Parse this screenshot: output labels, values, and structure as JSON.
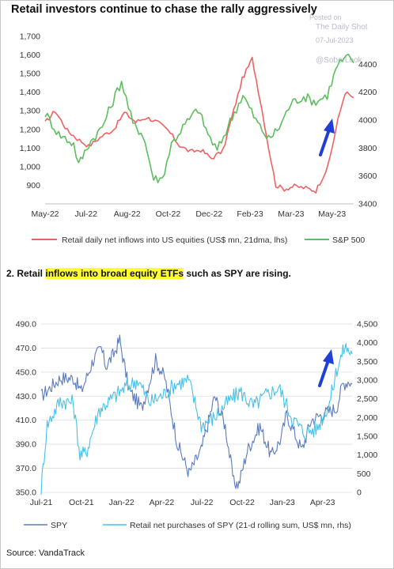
{
  "title_top": "Retail investors continue to chase the rally aggressively",
  "watermark": {
    "line1": "Posted on",
    "line2": "The Daily Shot",
    "line3": "07-Jul-2023",
    "line4": "@SoberLook"
  },
  "title_bottom": {
    "prefix": "2. Retail ",
    "highlight": "inflows into broad equity ETFs",
    "suffix": " such as SPY are rising."
  },
  "source": "Source: VandaTrack",
  "colors": {
    "red": "#f06262",
    "green": "#5dbe5d",
    "spy": "#5b7bbd",
    "retail": "#45c2e8",
    "arrow": "#1f3fd6"
  },
  "chart_data": [
    {
      "type": "line",
      "title": "Retail investors continue to chase the rally aggressively",
      "x_tick_labels": [
        "May-22",
        "Jul-22",
        "Aug-22",
        "Oct-22",
        "Dec-22",
        "Feb-23",
        "Mar-23",
        "May-23"
      ],
      "y_left_ticks": [
        "900",
        "1,000",
        "1,100",
        "1,200",
        "1,300",
        "1,400",
        "1,500",
        "1,600",
        "1,700"
      ],
      "y_left_range": [
        800,
        1700
      ],
      "y_right_ticks": [
        "3400",
        "3600",
        "3800",
        "4000",
        "4200",
        "4400"
      ],
      "y_right_range": [
        3400,
        4600
      ],
      "x_range": [
        "2022-05-01",
        "2023-07-07"
      ],
      "series": [
        {
          "name": "Retail daily net inflows into US equities (US$ mn, 21dma, lhs)",
          "axis": "left",
          "points": [
            [
              "2022-05-01",
              1235
            ],
            [
              "2022-05-15",
              1300
            ],
            [
              "2022-06-01",
              1195
            ],
            [
              "2022-06-15",
              1150
            ],
            [
              "2022-07-01",
              1110
            ],
            [
              "2022-07-20",
              1165
            ],
            [
              "2022-08-05",
              1200
            ],
            [
              "2022-08-20",
              1290
            ],
            [
              "2022-09-05",
              1240
            ],
            [
              "2022-09-20",
              1265
            ],
            [
              "2022-10-05",
              1240
            ],
            [
              "2022-10-20",
              1195
            ],
            [
              "2022-11-05",
              1115
            ],
            [
              "2022-11-20",
              1080
            ],
            [
              "2022-12-05",
              1090
            ],
            [
              "2022-12-20",
              1045
            ],
            [
              "2023-01-05",
              1085
            ],
            [
              "2023-01-20",
              1300
            ],
            [
              "2023-02-01",
              1470
            ],
            [
              "2023-02-15",
              1580
            ],
            [
              "2023-03-01",
              1300
            ],
            [
              "2023-03-10",
              1100
            ],
            [
              "2023-03-20",
              900
            ],
            [
              "2023-04-01",
              880
            ],
            [
              "2023-04-15",
              895
            ],
            [
              "2023-05-01",
              885
            ],
            [
              "2023-05-15",
              870
            ],
            [
              "2023-06-01",
              1000
            ],
            [
              "2023-06-15",
              1250
            ],
            [
              "2023-06-25",
              1400
            ],
            [
              "2023-07-07",
              1370
            ]
          ]
        },
        {
          "name": "S&P 500",
          "axis": "right",
          "points": [
            [
              "2022-05-01",
              4050
            ],
            [
              "2022-05-20",
              3900
            ],
            [
              "2022-06-10",
              3830
            ],
            [
              "2022-06-17",
              3680
            ],
            [
              "2022-07-01",
              3830
            ],
            [
              "2022-07-20",
              3950
            ],
            [
              "2022-08-10",
              4210
            ],
            [
              "2022-08-16",
              4280
            ],
            [
              "2022-09-01",
              3970
            ],
            [
              "2022-09-15",
              3900
            ],
            [
              "2022-09-30",
              3580
            ],
            [
              "2022-10-12",
              3580
            ],
            [
              "2022-10-25",
              3830
            ],
            [
              "2022-11-10",
              3950
            ],
            [
              "2022-12-01",
              4080
            ],
            [
              "2022-12-15",
              3900
            ],
            [
              "2022-12-28",
              3780
            ],
            [
              "2023-01-15",
              3990
            ],
            [
              "2023-02-02",
              4180
            ],
            [
              "2023-02-20",
              4000
            ],
            [
              "2023-03-10",
              3860
            ],
            [
              "2023-03-25",
              3950
            ],
            [
              "2023-04-10",
              4120
            ],
            [
              "2023-04-28",
              4170
            ],
            [
              "2023-05-15",
              4130
            ],
            [
              "2023-05-31",
              4180
            ],
            [
              "2023-06-15",
              4400
            ],
            [
              "2023-06-30",
              4450
            ],
            [
              "2023-07-07",
              4410
            ]
          ]
        }
      ],
      "annotation": "up-arrow"
    },
    {
      "type": "line",
      "x_tick_labels": [
        "Jul-21",
        "Oct-21",
        "Jan-22",
        "Apr-22",
        "Jul-22",
        "Oct-22",
        "Jan-23",
        "Apr-23"
      ],
      "y_left_ticks": [
        "350.0",
        "370.0",
        "390.0",
        "410.0",
        "430.0",
        "450.0",
        "470.0",
        "490.0"
      ],
      "y_left_range": [
        350,
        490
      ],
      "y_right_ticks": [
        "0",
        "500",
        "1,000",
        "1,500",
        "2,000",
        "2,500",
        "3,000",
        "3,500",
        "4,000",
        "4,500"
      ],
      "y_right_range": [
        0,
        4500
      ],
      "x_range": [
        "2021-07-01",
        "2023-07-07"
      ],
      "series": [
        {
          "name": "SPY",
          "axis": "left",
          "points": [
            [
              "2021-07-01",
              430
            ],
            [
              "2021-08-15",
              445
            ],
            [
              "2021-09-15",
              445
            ],
            [
              "2021-10-04",
              434
            ],
            [
              "2021-11-01",
              460
            ],
            [
              "2021-11-20",
              470
            ],
            [
              "2021-12-01",
              455
            ],
            [
              "2021-12-20",
              465
            ],
            [
              "2022-01-03",
              477
            ],
            [
              "2022-01-25",
              435
            ],
            [
              "2022-02-24",
              420
            ],
            [
              "2022-03-29",
              460
            ],
            [
              "2022-04-20",
              445
            ],
            [
              "2022-05-20",
              390
            ],
            [
              "2022-06-16",
              366
            ],
            [
              "2022-07-15",
              385
            ],
            [
              "2022-08-16",
              430
            ],
            [
              "2022-09-10",
              405
            ],
            [
              "2022-09-30",
              358
            ],
            [
              "2022-10-12",
              357
            ],
            [
              "2022-11-01",
              385
            ],
            [
              "2022-12-01",
              405
            ],
            [
              "2022-12-28",
              380
            ],
            [
              "2023-01-20",
              395
            ],
            [
              "2023-02-02",
              415
            ],
            [
              "2023-03-10",
              385
            ],
            [
              "2023-04-01",
              410
            ],
            [
              "2023-04-28",
              415
            ],
            [
              "2023-05-31",
              420
            ],
            [
              "2023-06-15",
              440
            ],
            [
              "2023-06-30",
              443
            ],
            [
              "2023-07-07",
              440
            ]
          ]
        },
        {
          "name": "Retail net purchases of SPY (21-d rolling sum, US$ mn, rhs)",
          "axis": "right",
          "points": [
            [
              "2021-07-01",
              100
            ],
            [
              "2021-07-15",
              1800
            ],
            [
              "2021-08-15",
              2450
            ],
            [
              "2021-09-15",
              2400
            ],
            [
              "2021-10-01",
              1000
            ],
            [
              "2021-10-15",
              1050
            ],
            [
              "2021-11-15",
              2200
            ],
            [
              "2021-12-15",
              2500
            ],
            [
              "2022-01-15",
              2800
            ],
            [
              "2022-02-15",
              3000
            ],
            [
              "2022-03-15",
              2400
            ],
            [
              "2022-04-15",
              2600
            ],
            [
              "2022-05-15",
              2900
            ],
            [
              "2022-06-15",
              3000
            ],
            [
              "2022-07-15",
              1800
            ],
            [
              "2022-08-15",
              2000
            ],
            [
              "2022-09-15",
              2400
            ],
            [
              "2022-10-15",
              2700
            ],
            [
              "2022-11-15",
              2300
            ],
            [
              "2022-12-15",
              2600
            ],
            [
              "2023-01-15",
              2800
            ],
            [
              "2023-02-15",
              2000
            ],
            [
              "2023-03-15",
              1600
            ],
            [
              "2023-04-15",
              1700
            ],
            [
              "2023-05-15",
              2400
            ],
            [
              "2023-06-01",
              3300
            ],
            [
              "2023-06-20",
              3900
            ],
            [
              "2023-07-07",
              3700
            ]
          ]
        }
      ],
      "annotation": "up-arrow"
    }
  ]
}
